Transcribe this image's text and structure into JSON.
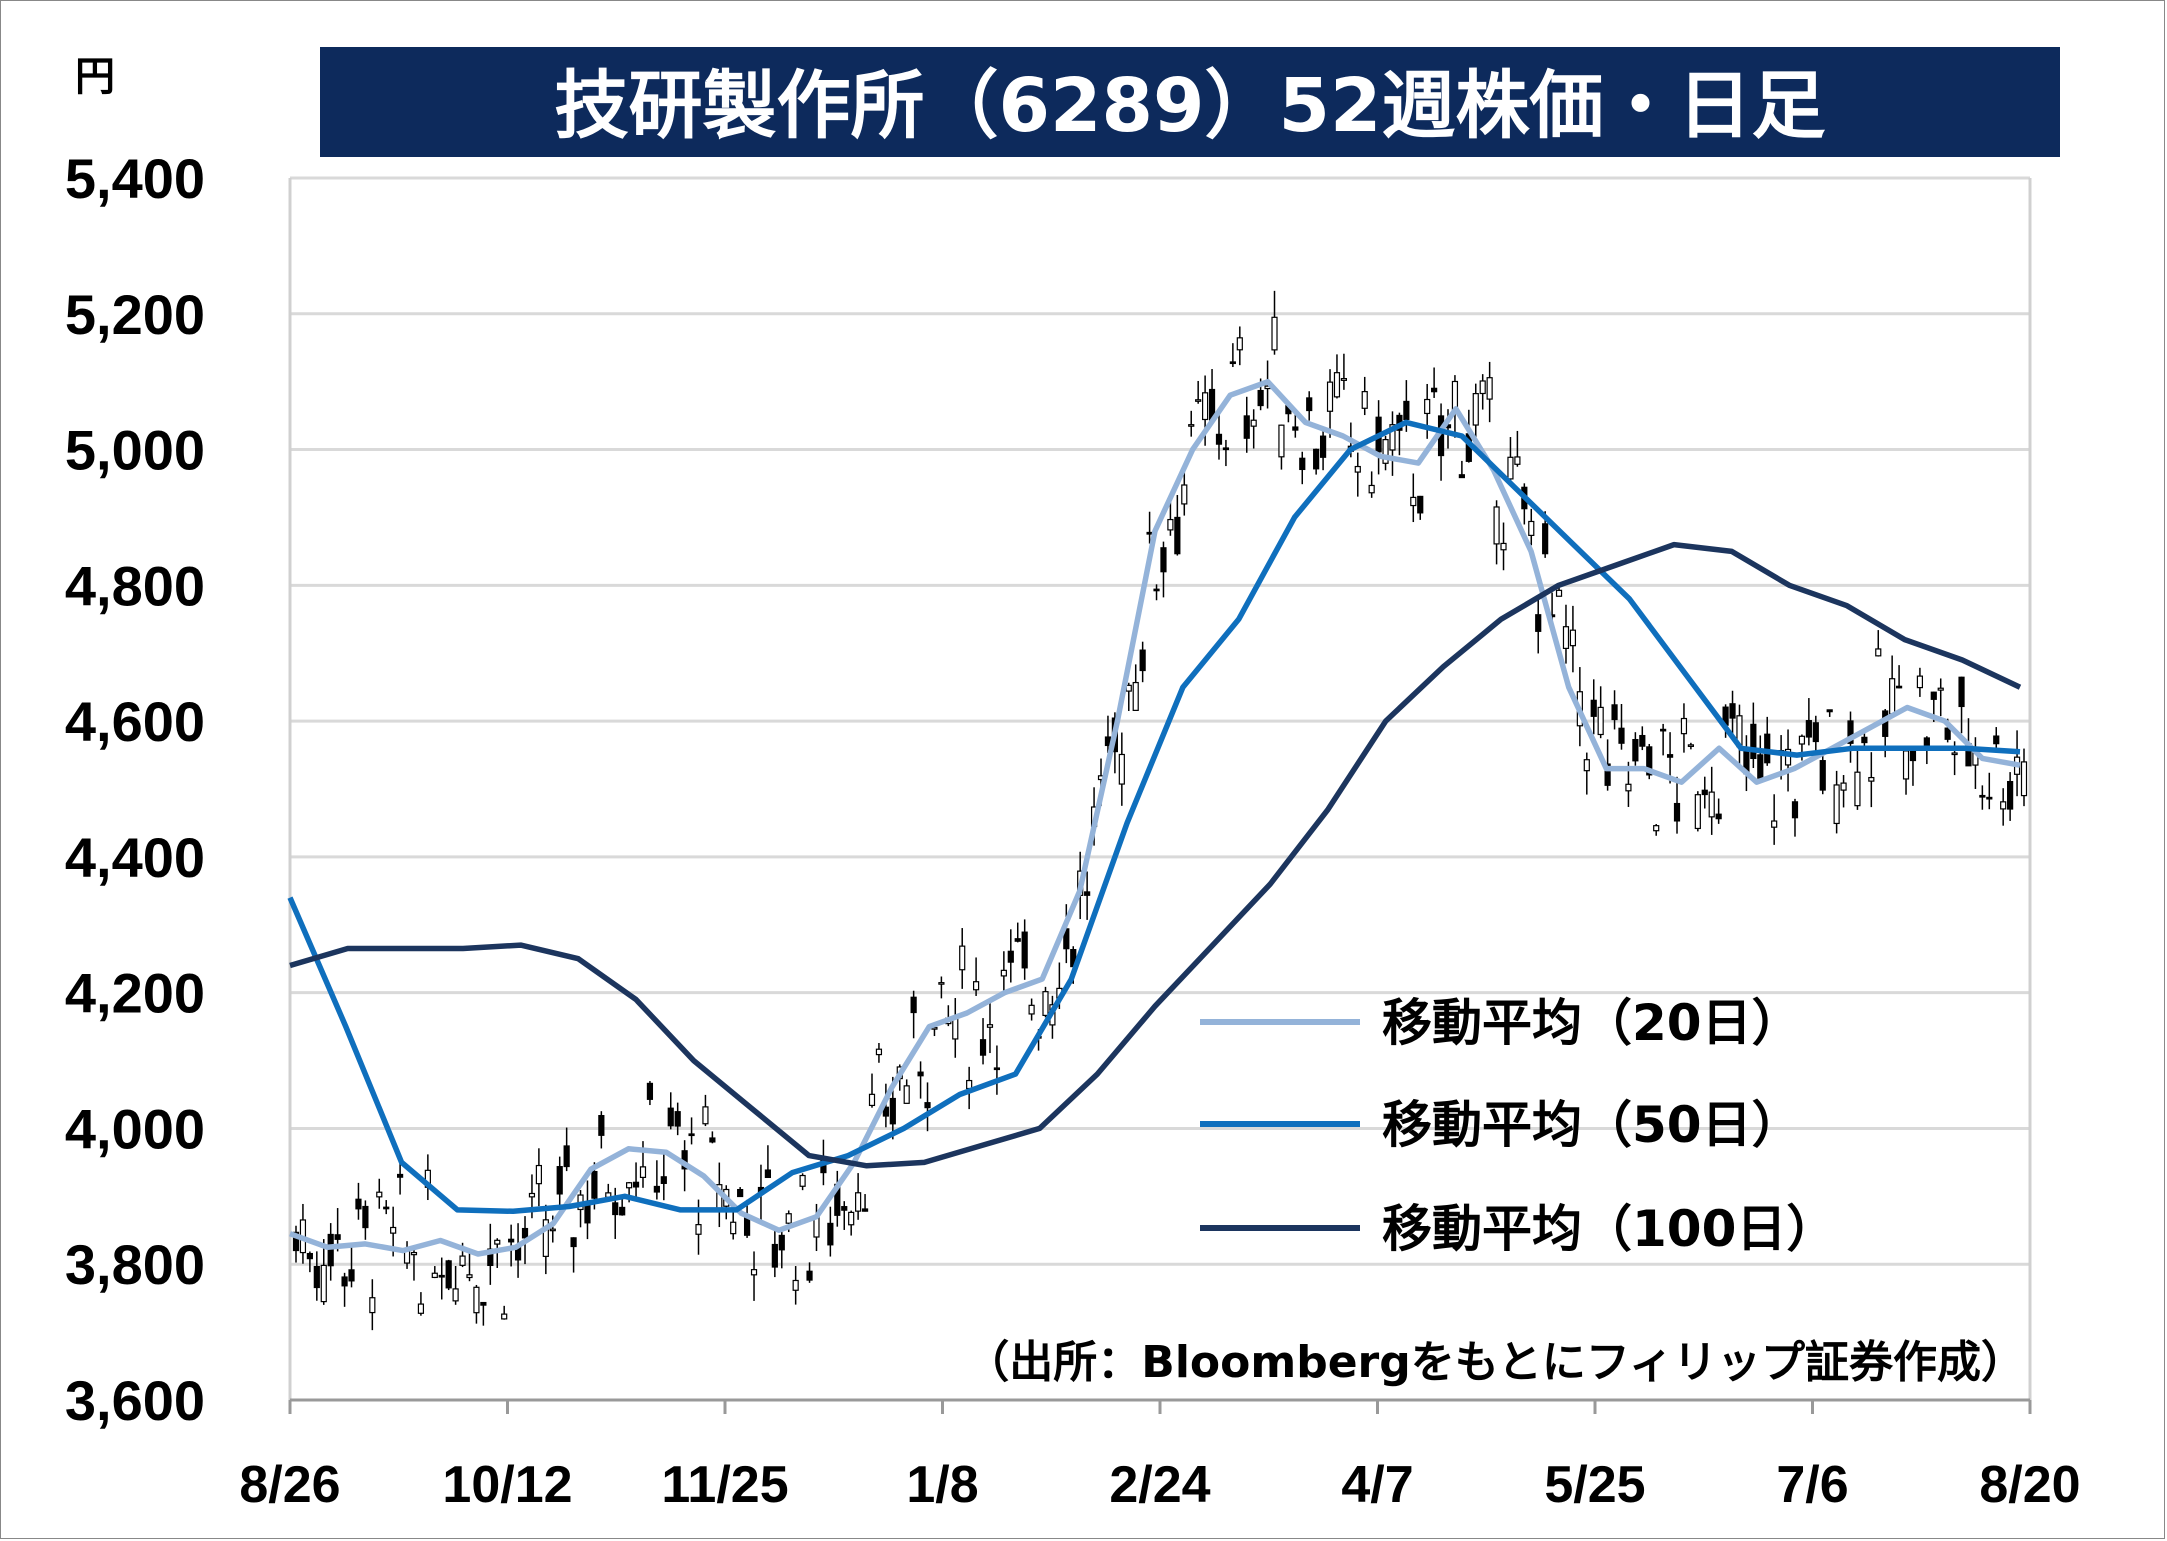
{
  "chart_data": {
    "type": "line",
    "title": "技研製作所（6289）52週株価・日足",
    "ylabel": "円",
    "source_note": "（出所：Bloombergをもとにフィリップ証券作成）",
    "ylim": [
      3600,
      5400
    ],
    "yticks": [
      "5,400",
      "5,200",
      "5,000",
      "4,800",
      "4,600",
      "4,400",
      "4,200",
      "4,000",
      "3,800",
      "3,600"
    ],
    "ytick_values": [
      5400,
      5200,
      5000,
      4800,
      4600,
      4400,
      4200,
      4000,
      3800,
      3600
    ],
    "xticks": [
      "8/26",
      "10/12",
      "11/25",
      "1/8",
      "2/24",
      "4/7",
      "5/25",
      "7/6",
      "8/20"
    ],
    "grid": true,
    "legend_position": "right-middle",
    "colors": {
      "title_bg": "#0d2a5c",
      "ma20": "#94b3d9",
      "ma50": "#0f6fbd",
      "ma100": "#1c355e",
      "candle": "#000000",
      "grid": "#d9d9d9"
    },
    "series": [
      {
        "name": "移動平均（20日）",
        "key": "ma20",
        "values": [
          3845,
          3825,
          3830,
          3820,
          3835,
          3815,
          3825,
          3860,
          3940,
          3970,
          3965,
          3930,
          3875,
          3850,
          3870,
          3950,
          4060,
          4150,
          4170,
          4200,
          4220,
          4350,
          4600,
          4880,
          5000,
          5080,
          5100,
          5040,
          5020,
          4990,
          4980,
          5060,
          4970,
          4850,
          4650,
          4530,
          4530,
          4510,
          4560,
          4510,
          4530,
          4560,
          4590,
          4620,
          4600,
          4545,
          4535
        ]
      },
      {
        "name": "移動平均（50日）",
        "key": "ma50",
        "values": [
          4340,
          4150,
          3950,
          3880,
          3878,
          3885,
          3900,
          3880,
          3880,
          3935,
          3960,
          4000,
          4050,
          4080,
          4220,
          4450,
          4650,
          4750,
          4900,
          5000,
          5040,
          5020,
          4940,
          4860,
          4780,
          4670,
          4560,
          4550,
          4560,
          4560,
          4560,
          4555
        ]
      },
      {
        "name": "移動平均（100日）",
        "key": "ma100",
        "values": [
          4240,
          4265,
          4265,
          4265,
          4270,
          4250,
          4190,
          4100,
          4030,
          3960,
          3945,
          3950,
          3975,
          4000,
          4080,
          4180,
          4270,
          4360,
          4470,
          4600,
          4680,
          4750,
          4800,
          4830,
          4860,
          4850,
          4800,
          4770,
          4720,
          4690,
          4650
        ]
      }
    ]
  },
  "legend": {
    "items": [
      {
        "label": "移動平均（20日）",
        "key": "ma20"
      },
      {
        "label": "移動平均（50日）",
        "key": "ma50"
      },
      {
        "label": "移動平均（100日）",
        "key": "ma100"
      }
    ]
  }
}
